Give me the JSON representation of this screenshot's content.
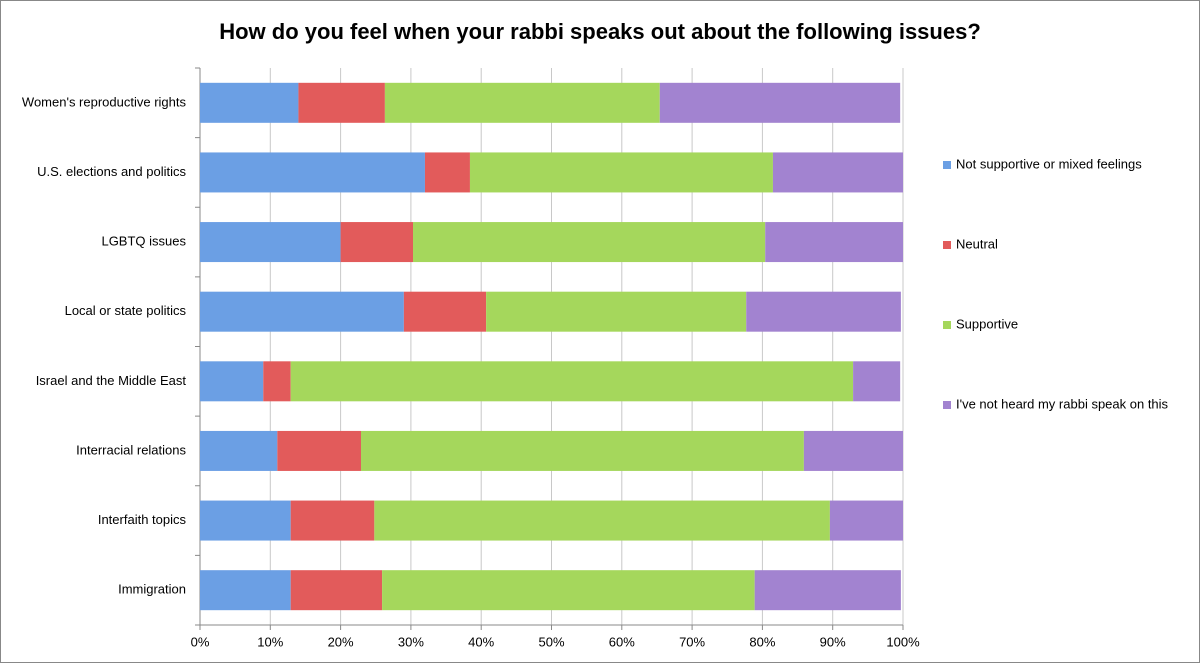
{
  "chart_data": {
    "type": "stacked-bar-horizontal",
    "title": "How do you feel when your rabbi speaks out about the following issues?",
    "categories": [
      "Women's reproductive rights",
      "U.S. elections and politics",
      "LGBTQ issues",
      "Local or state politics",
      "Israel and the Middle East",
      "Interracial relations",
      "Interfaith topics",
      "Immigration"
    ],
    "series": [
      {
        "name": "Not supportive or mixed feelings",
        "color": "#6b9fe4",
        "values": [
          14,
          32,
          20,
          29,
          9,
          11,
          12.9,
          12.9
        ]
      },
      {
        "name": "Neutral",
        "color": "#e25b5b",
        "values": [
          12.3,
          6.4,
          10.3,
          11.7,
          3.9,
          11.9,
          11.9,
          13
        ]
      },
      {
        "name": "Supportive",
        "color": "#a5d75c",
        "values": [
          39.1,
          43.1,
          50.1,
          37,
          80,
          63,
          64.8,
          53
        ]
      },
      {
        "name": "I've not heard my rabbi speak on this",
        "color": "#a283d0",
        "values": [
          34.2,
          18.5,
          19.6,
          22,
          6.7,
          14.1,
          10.4,
          20.8
        ]
      }
    ],
    "xlim": [
      0,
      100
    ],
    "xticks": [
      {
        "value": 0,
        "label": "0%"
      },
      {
        "value": 10,
        "label": "10%"
      },
      {
        "value": 20,
        "label": "20%"
      },
      {
        "value": 30,
        "label": "30%"
      },
      {
        "value": 40,
        "label": "40%"
      },
      {
        "value": 50,
        "label": "50%"
      },
      {
        "value": 60,
        "label": "60%"
      },
      {
        "value": 70,
        "label": "70%"
      },
      {
        "value": 80,
        "label": "80%"
      },
      {
        "value": 90,
        "label": "90%"
      },
      {
        "value": 100,
        "label": "100%"
      }
    ],
    "grid": true,
    "legend": "right"
  }
}
